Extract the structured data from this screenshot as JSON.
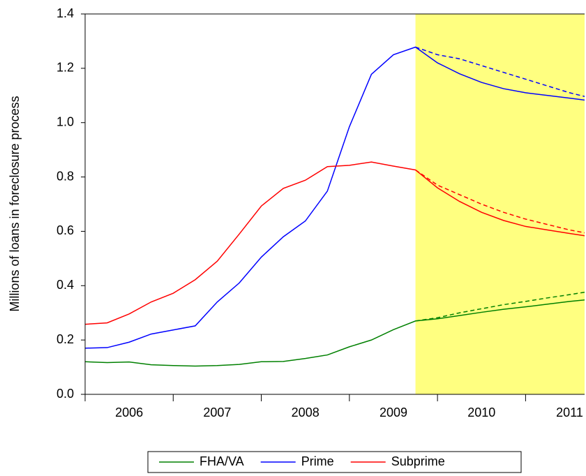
{
  "chart_data": {
    "type": "line",
    "y_label": "Millions of loans in foreclosure process",
    "x": [
      2006,
      2006.25,
      2006.5,
      2006.75,
      2007,
      2007.25,
      2007.5,
      2007.75,
      2008,
      2008.25,
      2008.5,
      2008.75,
      2009,
      2009.25,
      2009.5,
      2009.75,
      2010,
      2010.25,
      2010.5,
      2010.75,
      2011,
      2011.25,
      2011.5,
      2011.75
    ],
    "xlim": [
      2006,
      2011.67
    ],
    "xticks": [
      {
        "value": 2006,
        "label": "2006"
      },
      {
        "value": 2007,
        "label": "2007"
      },
      {
        "value": 2008,
        "label": "2008"
      },
      {
        "value": 2009,
        "label": "2009"
      },
      {
        "value": 2010,
        "label": "2010"
      },
      {
        "value": 2011,
        "label": "2011"
      }
    ],
    "ylim": [
      0,
      1.4
    ],
    "yticks": [
      {
        "value": 0,
        "label": "0.0"
      },
      0.2,
      0.4,
      0.6,
      0.8,
      {
        "value": 1,
        "label": "1.0"
      },
      1.2,
      1.4
    ],
    "shade_from": 2009.75,
    "shade_color": "#ffff80",
    "series": [
      {
        "name": "FHA/VA",
        "color": "#008000",
        "values": [
          0.12,
          0.117,
          0.119,
          0.109,
          0.106,
          0.104,
          0.106,
          0.11,
          0.12,
          0.121,
          0.132,
          0.145,
          0.175,
          0.2,
          0.238,
          0.27,
          0.278,
          0.29,
          0.302,
          0.313,
          0.322,
          0.332,
          0.342,
          0.35
        ],
        "forecast": [
          null,
          null,
          null,
          null,
          null,
          null,
          null,
          null,
          null,
          null,
          null,
          null,
          null,
          null,
          null,
          0.27,
          0.282,
          0.3,
          0.315,
          0.33,
          0.342,
          0.355,
          0.367,
          0.38
        ]
      },
      {
        "name": "Prime",
        "color": "#0000ff",
        "values": [
          0.17,
          0.172,
          0.192,
          0.222,
          0.237,
          0.252,
          0.34,
          0.41,
          0.505,
          0.58,
          0.638,
          0.748,
          0.985,
          1.178,
          1.25,
          1.278,
          1.22,
          1.18,
          1.148,
          1.125,
          1.11,
          1.1,
          1.09,
          1.08
        ],
        "forecast": [
          null,
          null,
          null,
          null,
          null,
          null,
          null,
          null,
          null,
          null,
          null,
          null,
          null,
          null,
          null,
          1.278,
          1.25,
          1.235,
          1.21,
          1.185,
          1.16,
          1.135,
          1.11,
          1.09
        ]
      },
      {
        "name": "Subprime",
        "color": "#ff0000",
        "values": [
          0.258,
          0.263,
          0.296,
          0.34,
          0.372,
          0.422,
          0.49,
          0.59,
          0.693,
          0.758,
          0.788,
          0.838,
          0.843,
          0.855,
          0.84,
          0.826,
          0.76,
          0.71,
          0.67,
          0.64,
          0.618,
          0.605,
          0.592,
          0.58
        ],
        "forecast": [
          null,
          null,
          null,
          null,
          null,
          null,
          null,
          null,
          null,
          null,
          null,
          null,
          null,
          null,
          null,
          0.826,
          0.77,
          0.735,
          0.7,
          0.67,
          0.645,
          0.625,
          0.605,
          0.59
        ]
      }
    ]
  }
}
